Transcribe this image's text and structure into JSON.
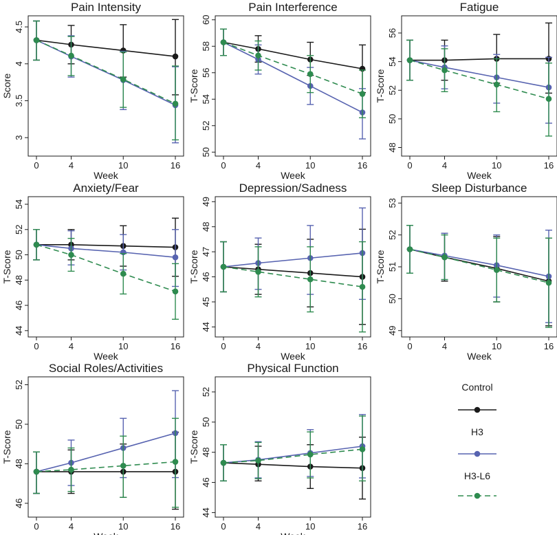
{
  "figure": {
    "legend": {
      "title": "Control",
      "entries": [
        {
          "name": "Control",
          "label": "Control",
          "color": "#1a1a1a",
          "dash": "solid"
        },
        {
          "name": "H3",
          "label": "H3",
          "color": "#5763b0",
          "dash": "solid"
        },
        {
          "name": "H3-L6",
          "label": "H3-L6",
          "color": "#2e8b4f",
          "dash": "dashed"
        }
      ]
    }
  },
  "chart_data": [
    {
      "type": "line",
      "title": "Pain Intensity",
      "xlabel": "Week",
      "ylabel": "Score",
      "x": [
        0,
        4,
        10,
        16
      ],
      "xticks": [
        "0",
        "4",
        "10",
        "16"
      ],
      "ylim": [
        2.75,
        4.65
      ],
      "yticks": [
        3,
        3.5,
        4,
        4.5
      ],
      "ytick_labels": [
        "3",
        "3.5",
        "4",
        "4.5"
      ],
      "series": [
        {
          "name": "Control",
          "values": [
            4.32,
            4.26,
            4.18,
            4.1
          ],
          "lower": [
            4.05,
            4.0,
            3.82,
            3.58
          ],
          "upper": [
            4.58,
            4.52,
            4.53,
            4.6
          ]
        },
        {
          "name": "H3",
          "values": [
            4.32,
            4.1,
            3.78,
            3.44
          ],
          "lower": [
            4.05,
            3.82,
            3.38,
            2.93
          ],
          "upper": [
            4.58,
            4.38,
            4.17,
            3.96
          ]
        },
        {
          "name": "H3-L6",
          "values": [
            4.32,
            4.11,
            3.79,
            3.46
          ],
          "lower": [
            4.05,
            3.84,
            3.41,
            2.97
          ],
          "upper": [
            4.58,
            4.37,
            4.16,
            3.97
          ]
        }
      ]
    },
    {
      "type": "line",
      "title": "Pain Interference",
      "xlabel": "Week",
      "ylabel": "T-Score",
      "x": [
        0,
        4,
        10,
        16
      ],
      "xticks": [
        "0",
        "4",
        "10",
        "16"
      ],
      "ylim": [
        49.7,
        60.3
      ],
      "yticks": [
        50,
        52,
        54,
        56,
        58,
        60
      ],
      "ytick_labels": [
        "50",
        "52",
        "54",
        "56",
        "58",
        "60"
      ],
      "series": [
        {
          "name": "Control",
          "values": [
            58.3,
            57.8,
            57.0,
            56.3
          ],
          "lower": [
            57.3,
            56.8,
            55.8,
            54.5
          ],
          "upper": [
            59.3,
            58.8,
            58.3,
            58.1
          ]
        },
        {
          "name": "H3",
          "values": [
            58.3,
            57.0,
            55.0,
            53.0
          ],
          "lower": [
            57.3,
            55.9,
            53.6,
            51.0
          ],
          "upper": [
            59.3,
            58.1,
            56.4,
            54.8
          ]
        },
        {
          "name": "H3-L6",
          "values": [
            58.3,
            57.3,
            55.9,
            54.4
          ],
          "lower": [
            57.3,
            56.2,
            54.5,
            52.6
          ],
          "upper": [
            59.3,
            58.4,
            57.3,
            56.2
          ]
        }
      ]
    },
    {
      "type": "line",
      "title": "Fatigue",
      "xlabel": "Week",
      "ylabel": "T-Score",
      "x": [
        0,
        4,
        10,
        16
      ],
      "xticks": [
        "0",
        "4",
        "10",
        "16"
      ],
      "ylim": [
        47.4,
        57.2
      ],
      "yticks": [
        48,
        50,
        52,
        54,
        56
      ],
      "ytick_labels": [
        "48",
        "50",
        "52",
        "54",
        "56"
      ],
      "series": [
        {
          "name": "Control",
          "values": [
            54.1,
            54.1,
            54.2,
            54.2
          ],
          "lower": [
            52.7,
            52.7,
            52.5,
            51.8
          ],
          "upper": [
            55.5,
            55.5,
            55.9,
            56.7
          ]
        },
        {
          "name": "H3",
          "values": [
            54.1,
            53.6,
            52.9,
            52.2
          ],
          "lower": [
            52.7,
            52.1,
            51.1,
            49.7
          ],
          "upper": [
            55.5,
            55.1,
            54.5,
            54.3
          ]
        },
        {
          "name": "H3-L6",
          "values": [
            54.1,
            53.4,
            52.4,
            51.4
          ],
          "lower": [
            52.7,
            51.9,
            50.5,
            48.8
          ],
          "upper": [
            55.5,
            54.9,
            54.2,
            53.9
          ]
        }
      ]
    },
    {
      "type": "line",
      "title": "Anxiety/Fear",
      "xlabel": "Week",
      "ylabel": "T-Score",
      "x": [
        0,
        4,
        10,
        16
      ],
      "xticks": [
        "0",
        "4",
        "10",
        "16"
      ],
      "ylim": [
        43.5,
        54.6
      ],
      "yticks": [
        44,
        46,
        48,
        50,
        52,
        54
      ],
      "ytick_labels": [
        "44",
        "46",
        "48",
        "50",
        "52",
        "54"
      ],
      "series": [
        {
          "name": "Control",
          "values": [
            50.8,
            50.8,
            50.7,
            50.6
          ],
          "lower": [
            49.6,
            49.6,
            49.1,
            48.3
          ],
          "upper": [
            52.0,
            52.0,
            52.3,
            52.9
          ]
        },
        {
          "name": "H3",
          "values": [
            50.8,
            50.5,
            50.2,
            49.8
          ],
          "lower": [
            49.6,
            49.2,
            48.8,
            47.5
          ],
          "upper": [
            52.0,
            51.9,
            51.6,
            52.0
          ]
        },
        {
          "name": "H3-L6",
          "values": [
            50.8,
            50.0,
            48.5,
            47.1
          ],
          "lower": [
            49.6,
            48.7,
            46.9,
            44.9
          ],
          "upper": [
            52.0,
            51.3,
            50.1,
            49.3
          ]
        }
      ]
    },
    {
      "type": "line",
      "title": "Depression/Sadness",
      "xlabel": "Week",
      "ylabel": "T-Score",
      "x": [
        0,
        4,
        10,
        16
      ],
      "xticks": [
        "0",
        "4",
        "10",
        "16"
      ],
      "ylim": [
        43.6,
        49.2
      ],
      "yticks": [
        44,
        45,
        46,
        47,
        48,
        49
      ],
      "ytick_labels": [
        "44",
        "45",
        "46",
        "47",
        "48",
        "49"
      ],
      "series": [
        {
          "name": "Control",
          "values": [
            46.4,
            46.3,
            46.15,
            46.0
          ],
          "lower": [
            45.4,
            45.3,
            44.8,
            44.1
          ],
          "upper": [
            47.4,
            47.3,
            47.5,
            47.9
          ]
        },
        {
          "name": "H3",
          "values": [
            46.4,
            46.55,
            46.75,
            46.95
          ],
          "lower": [
            45.4,
            45.5,
            45.3,
            45.1
          ],
          "upper": [
            47.4,
            47.55,
            48.05,
            48.75
          ]
        },
        {
          "name": "H3-L6",
          "values": [
            46.4,
            46.2,
            45.9,
            45.6
          ],
          "lower": [
            45.4,
            45.2,
            44.6,
            43.8
          ],
          "upper": [
            47.4,
            47.2,
            47.2,
            47.4
          ]
        }
      ]
    },
    {
      "type": "line",
      "title": "Sleep Disturbance",
      "xlabel": "Week",
      "ylabel": "T-Score",
      "x": [
        0,
        4,
        10,
        16
      ],
      "xticks": [
        "0",
        "4",
        "10",
        "16"
      ],
      "ylim": [
        48.8,
        53.2
      ],
      "yticks": [
        49,
        50,
        51,
        52,
        53
      ],
      "ytick_labels": [
        "49",
        "50",
        "51",
        "52",
        "53"
      ],
      "series": [
        {
          "name": "Control",
          "values": [
            51.55,
            51.3,
            50.95,
            50.55
          ],
          "lower": [
            50.8,
            50.55,
            49.9,
            49.15
          ],
          "upper": [
            52.3,
            52.05,
            51.95,
            51.9
          ]
        },
        {
          "name": "H3",
          "values": [
            51.55,
            51.35,
            51.05,
            50.7
          ],
          "lower": [
            50.8,
            50.6,
            50.05,
            49.25
          ],
          "upper": [
            52.3,
            52.05,
            52.0,
            52.15
          ]
        },
        {
          "name": "H3-L6",
          "values": [
            51.55,
            51.3,
            50.9,
            50.5
          ],
          "lower": [
            50.8,
            50.6,
            49.9,
            49.1
          ],
          "upper": [
            52.3,
            52.0,
            51.9,
            51.9
          ]
        }
      ]
    },
    {
      "type": "line",
      "title": "Social Roles/Activities",
      "xlabel": "Week",
      "ylabel": "T-Score",
      "x": [
        0,
        4,
        10,
        16
      ],
      "xticks": [
        "0",
        "4",
        "10",
        "16"
      ],
      "ylim": [
        45.3,
        52.4
      ],
      "yticks": [
        46,
        48,
        50,
        52
      ],
      "ytick_labels": [
        "46",
        "48",
        "50",
        "52"
      ],
      "series": [
        {
          "name": "Control",
          "values": [
            47.6,
            47.6,
            47.6,
            47.6
          ],
          "lower": [
            46.5,
            46.5,
            46.3,
            45.7
          ],
          "upper": [
            48.6,
            48.7,
            49.0,
            49.6
          ]
        },
        {
          "name": "H3",
          "values": [
            47.6,
            48.05,
            48.8,
            49.55
          ],
          "lower": [
            46.5,
            46.9,
            47.3,
            47.3
          ],
          "upper": [
            48.6,
            49.2,
            50.3,
            51.7
          ]
        },
        {
          "name": "H3-L6",
          "values": [
            47.6,
            47.7,
            47.9,
            48.1
          ],
          "lower": [
            46.5,
            46.6,
            46.3,
            45.8
          ],
          "upper": [
            48.6,
            48.8,
            49.4,
            50.3
          ]
        }
      ]
    },
    {
      "type": "line",
      "title": "Physical Function",
      "xlabel": "Week",
      "ylabel": "T-Score",
      "x": [
        0,
        4,
        10,
        16
      ],
      "xticks": [
        "0",
        "4",
        "10",
        "16"
      ],
      "ylim": [
        43.7,
        53.0
      ],
      "yticks": [
        44,
        46,
        48,
        50,
        52
      ],
      "ytick_labels": [
        "44",
        "46",
        "48",
        "50",
        "52"
      ],
      "series": [
        {
          "name": "Control",
          "values": [
            47.3,
            47.2,
            47.05,
            46.95
          ],
          "lower": [
            46.1,
            46.1,
            45.6,
            44.9
          ],
          "upper": [
            48.5,
            48.4,
            48.5,
            49.0
          ]
        },
        {
          "name": "H3",
          "values": [
            47.3,
            47.5,
            47.95,
            48.4
          ],
          "lower": [
            46.1,
            46.3,
            46.4,
            46.3
          ],
          "upper": [
            48.5,
            48.7,
            49.5,
            50.5
          ]
        },
        {
          "name": "H3-L6",
          "values": [
            47.3,
            47.45,
            47.85,
            48.2
          ],
          "lower": [
            46.1,
            46.25,
            46.3,
            46.1
          ],
          "upper": [
            48.5,
            48.65,
            49.35,
            50.4
          ]
        }
      ]
    }
  ]
}
